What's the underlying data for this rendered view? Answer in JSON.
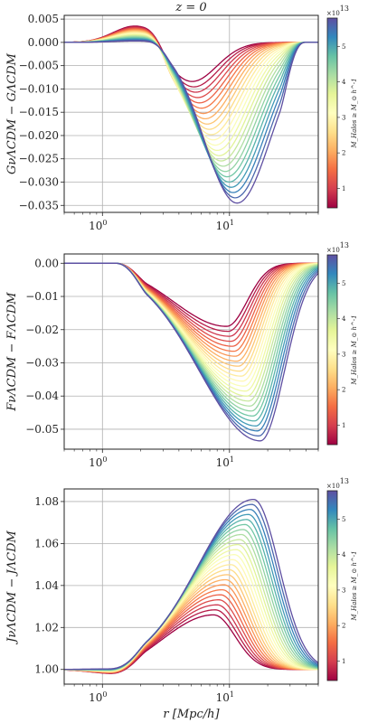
{
  "chart_data": [
    {
      "type": "line",
      "title": "z = 0",
      "ylabel": "G_{νΛCDM} − G_{ΛCDM}",
      "xlabel": "",
      "xscale": "log",
      "xlim": [
        0.5,
        50
      ],
      "ylim": [
        -0.0365,
        0.0058
      ],
      "xticks": [
        1,
        10
      ],
      "xtick_labels": [
        "10^0",
        "10^1"
      ],
      "yticks": [
        0.005,
        0.0,
        -0.005,
        -0.01,
        -0.015,
        -0.02,
        -0.025,
        -0.03,
        -0.035
      ],
      "ytick_labels": [
        "0.005",
        "0.000",
        "−0.005",
        "−0.010",
        "−0.015",
        "−0.020",
        "−0.025",
        "−0.030",
        "−0.035"
      ],
      "grid": true,
      "series_count": 24,
      "series_param": {
        "name": "M_Halos ≥ M_⊙ h^-1",
        "min": 0.45,
        "max": 5.8
      },
      "shape": {
        "bump_x": 1.8,
        "bump_min": 0.0035,
        "bump_max": 0.0003,
        "dip_x_min": 5.0,
        "dip_x_max": 11.5,
        "dip_depth_min": -0.0085,
        "dip_depth_max": -0.0345,
        "end_x": 35,
        "feature": "dip"
      },
      "colorbar": {
        "ticks": [
          1,
          2,
          3,
          4,
          5
        ],
        "tick_labels": [
          "1",
          "2",
          "3",
          "4",
          "5"
        ],
        "range": [
          0.45,
          5.8
        ],
        "exponent": "×10^13",
        "label": "M_Halos ≥ M_⊙ h^-1",
        "cmap": [
          "#9e0142",
          "#d53e4f",
          "#f46d43",
          "#fdae61",
          "#fee08b",
          "#ffffbf",
          "#e6f598",
          "#abdda4",
          "#66c2a5",
          "#3288bd",
          "#5e4fa2"
        ]
      }
    },
    {
      "type": "line",
      "title": "",
      "ylabel": "F_{νΛCDM} − F_{ΛCDM}",
      "xlabel": "",
      "xscale": "log",
      "xlim": [
        0.5,
        50
      ],
      "ylim": [
        -0.056,
        0.0028
      ],
      "xticks": [
        1,
        10
      ],
      "xtick_labels": [
        "10^0",
        "10^1"
      ],
      "yticks": [
        0.0,
        -0.01,
        -0.02,
        -0.03,
        -0.04,
        -0.05
      ],
      "ytick_labels": [
        "0.00",
        "−0.01",
        "−0.02",
        "−0.03",
        "−0.04",
        "−0.05"
      ],
      "grid": true,
      "series_count": 24,
      "series_param": {
        "name": "M_Halos ≥ M_⊙ h^-1",
        "min": 0.45,
        "max": 5.8
      },
      "shape": {
        "start_x": 1.6,
        "dip_x_min": 9.5,
        "dip_x_max": 17.5,
        "dip_depth_min": -0.019,
        "dip_depth_max": -0.0535,
        "end_x": 42,
        "feature": "dip"
      },
      "colorbar": {
        "ticks": [
          1,
          2,
          3,
          4,
          5
        ],
        "tick_labels": [
          "1",
          "2",
          "3",
          "4",
          "5"
        ],
        "range": [
          0.45,
          5.8
        ],
        "exponent": "×10^13",
        "label": "M_Halos ≥ M_⊙ h^-1",
        "cmap": [
          "#9e0142",
          "#d53e4f",
          "#f46d43",
          "#fdae61",
          "#fee08b",
          "#ffffbf",
          "#e6f598",
          "#abdda4",
          "#66c2a5",
          "#3288bd",
          "#5e4fa2"
        ]
      }
    },
    {
      "type": "line",
      "title": "",
      "ylabel": "J_{νΛCDM} − J_{ΛCDM}",
      "xlabel": "r [Mpc/h]",
      "xscale": "log",
      "xlim": [
        0.5,
        50
      ],
      "ylim": [
        0.993,
        1.086
      ],
      "xticks": [
        1,
        10
      ],
      "xtick_labels": [
        "10^0",
        "10^1"
      ],
      "yticks": [
        1.0,
        1.02,
        1.04,
        1.06,
        1.08
      ],
      "ytick_labels": [
        "1.00",
        "1.02",
        "1.04",
        "1.06",
        "1.08"
      ],
      "grid": true,
      "series_count": 24,
      "series_param": {
        "name": "M_Halos ≥ M_⊙ h^-1",
        "min": 0.45,
        "max": 5.8
      },
      "shape": {
        "dipbump_x": 1.3,
        "dipbump_min": -0.002,
        "dipbump_max": 0.0003,
        "peak_x_min": 7.5,
        "peak_x_max": 15.5,
        "peak_min": 1.026,
        "peak_max": 1.081,
        "end_x": 42,
        "feature": "peak"
      },
      "colorbar": {
        "ticks": [
          1,
          2,
          3,
          4,
          5
        ],
        "tick_labels": [
          "1",
          "2",
          "3",
          "4",
          "5"
        ],
        "range": [
          0.45,
          5.8
        ],
        "exponent": "×10^13",
        "label": "M_Halos ≥ M_⊙ h^-1",
        "cmap": [
          "#9e0142",
          "#d53e4f",
          "#f46d43",
          "#fdae61",
          "#fee08b",
          "#ffffbf",
          "#e6f598",
          "#abdda4",
          "#66c2a5",
          "#3288bd",
          "#5e4fa2"
        ]
      }
    }
  ]
}
